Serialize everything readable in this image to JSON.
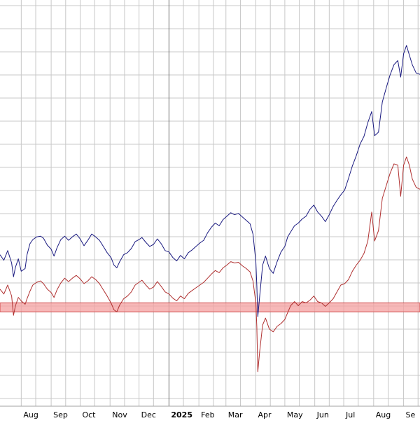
{
  "chart_data": {
    "type": "line",
    "title": "",
    "xlabel": "",
    "ylabel": "",
    "x_tick_labels": [
      {
        "label": "Aug",
        "date": "2024-08-01"
      },
      {
        "label": "Sep",
        "date": "2024-09-01"
      },
      {
        "label": "Oct",
        "date": "2024-10-01"
      },
      {
        "label": "Nov",
        "date": "2024-11-01"
      },
      {
        "label": "Dec",
        "date": "2024-12-01"
      },
      {
        "label": "2025",
        "date": "2025-01-01"
      },
      {
        "label": "Feb",
        "date": "2025-02-01"
      },
      {
        "label": "Mar",
        "date": "2025-03-01"
      },
      {
        "label": "Apr",
        "date": "2025-04-01"
      },
      {
        "label": "May",
        "date": "2025-05-01"
      },
      {
        "label": "Jun",
        "date": "2025-06-01"
      },
      {
        "label": "Jul",
        "date": "2025-07-01"
      },
      {
        "label": "Aug",
        "date": "2025-08-01"
      },
      {
        "label": "Se",
        "date": "2025-09-01"
      }
    ],
    "xlim": [
      "2024-07-10",
      "2025-09-18"
    ],
    "ylim": [
      0,
      590
    ],
    "grid": true,
    "band": {
      "low": 137,
      "high": 150,
      "color": "#f4a0a0",
      "edge": "#d04848"
    },
    "series": [
      {
        "color": "#1a1a80",
        "points": [
          [
            "2024-07-10",
            220
          ],
          [
            "2024-07-14",
            212
          ],
          [
            "2024-07-18",
            226
          ],
          [
            "2024-07-22",
            208
          ],
          [
            "2024-07-24",
            188
          ],
          [
            "2024-07-26",
            202
          ],
          [
            "2024-07-29",
            214
          ],
          [
            "2024-08-01",
            196
          ],
          [
            "2024-08-05",
            200
          ],
          [
            "2024-08-07",
            220
          ],
          [
            "2024-08-10",
            236
          ],
          [
            "2024-08-13",
            242
          ],
          [
            "2024-08-17",
            246
          ],
          [
            "2024-08-21",
            247
          ],
          [
            "2024-08-24",
            244
          ],
          [
            "2024-08-28",
            234
          ],
          [
            "2024-09-01",
            228
          ],
          [
            "2024-09-04",
            218
          ],
          [
            "2024-09-07",
            230
          ],
          [
            "2024-09-11",
            242
          ],
          [
            "2024-09-15",
            247
          ],
          [
            "2024-09-19",
            241
          ],
          [
            "2024-09-23",
            246
          ],
          [
            "2024-09-27",
            250
          ],
          [
            "2024-10-01",
            243
          ],
          [
            "2024-10-05",
            233
          ],
          [
            "2024-10-09",
            241
          ],
          [
            "2024-10-13",
            250
          ],
          [
            "2024-10-17",
            246
          ],
          [
            "2024-10-21",
            241
          ],
          [
            "2024-10-25",
            232
          ],
          [
            "2024-10-29",
            223
          ],
          [
            "2024-11-02",
            216
          ],
          [
            "2024-11-05",
            205
          ],
          [
            "2024-11-08",
            201
          ],
          [
            "2024-11-11",
            210
          ],
          [
            "2024-11-15",
            220
          ],
          [
            "2024-11-19",
            223
          ],
          [
            "2024-11-23",
            229
          ],
          [
            "2024-11-27",
            239
          ],
          [
            "2024-12-01",
            242
          ],
          [
            "2024-12-04",
            245
          ],
          [
            "2024-12-08",
            238
          ],
          [
            "2024-12-12",
            232
          ],
          [
            "2024-12-16",
            235
          ],
          [
            "2024-12-20",
            243
          ],
          [
            "2024-12-24",
            236
          ],
          [
            "2024-12-28",
            226
          ],
          [
            "2025-01-01",
            224
          ],
          [
            "2025-01-05",
            216
          ],
          [
            "2025-01-09",
            211
          ],
          [
            "2025-01-13",
            219
          ],
          [
            "2025-01-17",
            214
          ],
          [
            "2025-01-21",
            223
          ],
          [
            "2025-01-25",
            227
          ],
          [
            "2025-01-29",
            232
          ],
          [
            "2025-02-02",
            237
          ],
          [
            "2025-02-06",
            241
          ],
          [
            "2025-02-10",
            252
          ],
          [
            "2025-02-14",
            260
          ],
          [
            "2025-02-18",
            266
          ],
          [
            "2025-02-22",
            262
          ],
          [
            "2025-02-26",
            271
          ],
          [
            "2025-03-02",
            276
          ],
          [
            "2025-03-06",
            281
          ],
          [
            "2025-03-10",
            278
          ],
          [
            "2025-03-14",
            280
          ],
          [
            "2025-03-18",
            275
          ],
          [
            "2025-03-22",
            270
          ],
          [
            "2025-03-26",
            265
          ],
          [
            "2025-03-29",
            250
          ],
          [
            "2025-04-01",
            210
          ],
          [
            "2025-04-02",
            175
          ],
          [
            "2025-04-03",
            130
          ],
          [
            "2025-04-05",
            160
          ],
          [
            "2025-04-08",
            205
          ],
          [
            "2025-04-11",
            218
          ],
          [
            "2025-04-15",
            200
          ],
          [
            "2025-04-19",
            193
          ],
          [
            "2025-04-23",
            210
          ],
          [
            "2025-04-27",
            224
          ],
          [
            "2025-05-01",
            232
          ],
          [
            "2025-05-04",
            246
          ],
          [
            "2025-05-07",
            253
          ],
          [
            "2025-05-11",
            262
          ],
          [
            "2025-05-15",
            266
          ],
          [
            "2025-05-19",
            272
          ],
          [
            "2025-05-23",
            276
          ],
          [
            "2025-05-27",
            286
          ],
          [
            "2025-05-31",
            292
          ],
          [
            "2025-06-04",
            282
          ],
          [
            "2025-06-08",
            276
          ],
          [
            "2025-06-12",
            268
          ],
          [
            "2025-06-16",
            278
          ],
          [
            "2025-06-20",
            290
          ],
          [
            "2025-06-24",
            299
          ],
          [
            "2025-06-28",
            307
          ],
          [
            "2025-07-02",
            314
          ],
          [
            "2025-07-06",
            331
          ],
          [
            "2025-07-10",
            349
          ],
          [
            "2025-07-14",
            364
          ],
          [
            "2025-07-18",
            381
          ],
          [
            "2025-07-22",
            392
          ],
          [
            "2025-07-26",
            412
          ],
          [
            "2025-07-30",
            428
          ],
          [
            "2025-08-02",
            393
          ],
          [
            "2025-08-06",
            398
          ],
          [
            "2025-08-10",
            442
          ],
          [
            "2025-08-14",
            462
          ],
          [
            "2025-08-18",
            481
          ],
          [
            "2025-08-22",
            496
          ],
          [
            "2025-08-26",
            502
          ],
          [
            "2025-08-29",
            478
          ],
          [
            "2025-09-01",
            512
          ],
          [
            "2025-09-04",
            524
          ],
          [
            "2025-09-07",
            510
          ],
          [
            "2025-09-10",
            496
          ],
          [
            "2025-09-14",
            484
          ],
          [
            "2025-09-18",
            482
          ]
        ]
      },
      {
        "color": "#b03030",
        "points": [
          [
            "2024-07-10",
            170
          ],
          [
            "2024-07-14",
            163
          ],
          [
            "2024-07-18",
            176
          ],
          [
            "2024-07-22",
            160
          ],
          [
            "2024-07-24",
            132
          ],
          [
            "2024-07-26",
            146
          ],
          [
            "2024-07-29",
            158
          ],
          [
            "2024-08-01",
            153
          ],
          [
            "2024-08-05",
            148
          ],
          [
            "2024-08-07",
            156
          ],
          [
            "2024-08-10",
            167
          ],
          [
            "2024-08-13",
            176
          ],
          [
            "2024-08-17",
            180
          ],
          [
            "2024-08-21",
            182
          ],
          [
            "2024-08-24",
            178
          ],
          [
            "2024-08-28",
            170
          ],
          [
            "2024-09-01",
            165
          ],
          [
            "2024-09-04",
            158
          ],
          [
            "2024-09-07",
            169
          ],
          [
            "2024-09-11",
            179
          ],
          [
            "2024-09-15",
            186
          ],
          [
            "2024-09-19",
            181
          ],
          [
            "2024-09-23",
            186
          ],
          [
            "2024-09-27",
            190
          ],
          [
            "2024-10-01",
            185
          ],
          [
            "2024-10-05",
            178
          ],
          [
            "2024-10-09",
            182
          ],
          [
            "2024-10-13",
            188
          ],
          [
            "2024-10-17",
            184
          ],
          [
            "2024-10-21",
            178
          ],
          [
            "2024-10-25",
            169
          ],
          [
            "2024-10-29",
            160
          ],
          [
            "2024-11-02",
            150
          ],
          [
            "2024-11-05",
            140
          ],
          [
            "2024-11-08",
            137
          ],
          [
            "2024-11-11",
            147
          ],
          [
            "2024-11-15",
            156
          ],
          [
            "2024-11-19",
            160
          ],
          [
            "2024-11-23",
            166
          ],
          [
            "2024-11-27",
            176
          ],
          [
            "2024-12-01",
            180
          ],
          [
            "2024-12-04",
            183
          ],
          [
            "2024-12-08",
            176
          ],
          [
            "2024-12-12",
            170
          ],
          [
            "2024-12-16",
            173
          ],
          [
            "2024-12-20",
            181
          ],
          [
            "2024-12-24",
            174
          ],
          [
            "2024-12-28",
            166
          ],
          [
            "2025-01-01",
            163
          ],
          [
            "2025-01-05",
            157
          ],
          [
            "2025-01-09",
            153
          ],
          [
            "2025-01-13",
            160
          ],
          [
            "2025-01-17",
            156
          ],
          [
            "2025-01-21",
            164
          ],
          [
            "2025-01-25",
            168
          ],
          [
            "2025-01-29",
            172
          ],
          [
            "2025-02-02",
            176
          ],
          [
            "2025-02-06",
            180
          ],
          [
            "2025-02-10",
            186
          ],
          [
            "2025-02-14",
            192
          ],
          [
            "2025-02-18",
            197
          ],
          [
            "2025-02-22",
            194
          ],
          [
            "2025-02-26",
            201
          ],
          [
            "2025-03-02",
            205
          ],
          [
            "2025-03-06",
            210
          ],
          [
            "2025-03-10",
            208
          ],
          [
            "2025-03-14",
            209
          ],
          [
            "2025-03-18",
            204
          ],
          [
            "2025-03-22",
            200
          ],
          [
            "2025-03-26",
            195
          ],
          [
            "2025-03-29",
            182
          ],
          [
            "2025-04-01",
            150
          ],
          [
            "2025-04-02",
            115
          ],
          [
            "2025-04-03",
            50
          ],
          [
            "2025-04-05",
            80
          ],
          [
            "2025-04-08",
            118
          ],
          [
            "2025-04-11",
            128
          ],
          [
            "2025-04-15",
            112
          ],
          [
            "2025-04-19",
            108
          ],
          [
            "2025-04-23",
            116
          ],
          [
            "2025-04-27",
            120
          ],
          [
            "2025-05-01",
            126
          ],
          [
            "2025-05-04",
            136
          ],
          [
            "2025-05-07",
            146
          ],
          [
            "2025-05-11",
            152
          ],
          [
            "2025-05-15",
            146
          ],
          [
            "2025-05-19",
            152
          ],
          [
            "2025-05-23",
            150
          ],
          [
            "2025-05-27",
            154
          ],
          [
            "2025-05-31",
            160
          ],
          [
            "2025-06-04",
            152
          ],
          [
            "2025-06-08",
            150
          ],
          [
            "2025-06-12",
            145
          ],
          [
            "2025-06-16",
            150
          ],
          [
            "2025-06-20",
            156
          ],
          [
            "2025-06-24",
            166
          ],
          [
            "2025-06-28",
            176
          ],
          [
            "2025-07-02",
            178
          ],
          [
            "2025-07-06",
            184
          ],
          [
            "2025-07-10",
            196
          ],
          [
            "2025-07-14",
            205
          ],
          [
            "2025-07-18",
            212
          ],
          [
            "2025-07-22",
            222
          ],
          [
            "2025-07-26",
            240
          ],
          [
            "2025-07-30",
            282
          ],
          [
            "2025-08-02",
            240
          ],
          [
            "2025-08-06",
            255
          ],
          [
            "2025-08-10",
            302
          ],
          [
            "2025-08-14",
            320
          ],
          [
            "2025-08-18",
            338
          ],
          [
            "2025-08-22",
            352
          ],
          [
            "2025-08-26",
            350
          ],
          [
            "2025-08-29",
            305
          ],
          [
            "2025-09-01",
            350
          ],
          [
            "2025-09-04",
            362
          ],
          [
            "2025-09-07",
            350
          ],
          [
            "2025-09-10",
            330
          ],
          [
            "2025-09-14",
            318
          ],
          [
            "2025-09-18",
            315
          ]
        ]
      }
    ]
  }
}
